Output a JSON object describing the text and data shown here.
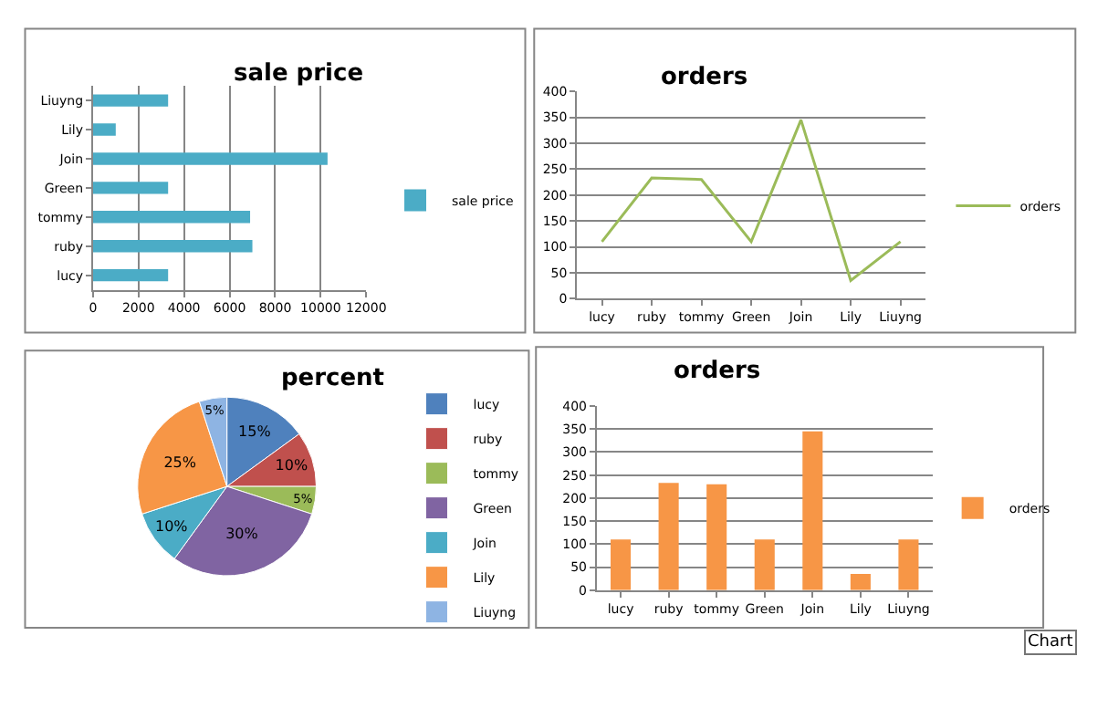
{
  "chart_data": [
    {
      "type": "bar",
      "title": "sale price",
      "orientation": "horizontal",
      "categories": [
        "Liuyng",
        "Lily",
        "Join",
        "Green",
        "tommy",
        "ruby",
        "lucy"
      ],
      "series": [
        {
          "name": "sale price",
          "color": "#4bacc6",
          "values": [
            3300,
            1000,
            10300,
            3300,
            6900,
            7000,
            3300
          ]
        }
      ],
      "xlim": [
        0,
        12000
      ],
      "xticks": [
        0,
        2000,
        4000,
        6000,
        8000,
        10000,
        12000
      ],
      "grid": "x",
      "legend": "right"
    },
    {
      "type": "line",
      "title": "orders",
      "categories": [
        "lucy",
        "ruby",
        "tommy",
        "Green",
        "Join",
        "Lily",
        "Liuyng"
      ],
      "series": [
        {
          "name": "orders",
          "color": "#9bbb59",
          "values": [
            110,
            233,
            230,
            110,
            345,
            35,
            110
          ]
        }
      ],
      "ylim": [
        0,
        400
      ],
      "yticks": [
        0,
        50,
        100,
        150,
        200,
        250,
        300,
        350,
        400
      ],
      "grid": "y",
      "legend": "right",
      "marker": "none"
    },
    {
      "type": "pie",
      "title": "percent",
      "categories": [
        "lucy",
        "ruby",
        "tommy",
        "Green",
        "Join",
        "Lily",
        "Liuyng"
      ],
      "values": [
        15,
        10,
        5,
        30,
        10,
        25,
        5
      ],
      "value_labels": [
        "15%",
        "10%",
        "5%",
        "30%",
        "10%",
        "25%",
        "5%"
      ],
      "colors": [
        "#4f81bd",
        "#c0504d",
        "#9bbb59",
        "#8064a2",
        "#4bacc6",
        "#f79646",
        "#8eb4e3"
      ],
      "legend": "right"
    },
    {
      "type": "bar",
      "title": "orders",
      "categories": [
        "lucy",
        "ruby",
        "tommy",
        "Green",
        "Join",
        "Lily",
        "Liuyng"
      ],
      "series": [
        {
          "name": "orders",
          "color": "#f79646",
          "values": [
            110,
            233,
            230,
            110,
            345,
            35,
            110
          ]
        }
      ],
      "ylim": [
        0,
        400
      ],
      "yticks": [
        0,
        50,
        100,
        150,
        200,
        250,
        300,
        350,
        400
      ],
      "grid": "y",
      "legend": "right",
      "annotations": [
        "Chart"
      ]
    }
  ]
}
